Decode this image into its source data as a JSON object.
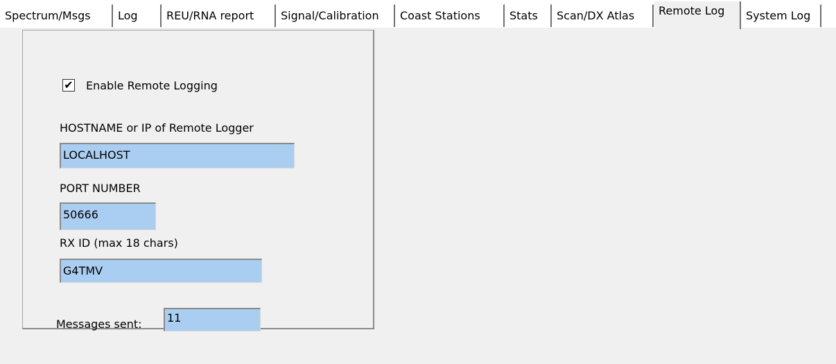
{
  "tabs": [
    {
      "label": "Spectrum/Msgs"
    },
    {
      "label": "Log"
    },
    {
      "label": "REU/RNA report"
    },
    {
      "label": "Signal/Calibration"
    },
    {
      "label": "Coast Stations"
    },
    {
      "label": "Stats"
    },
    {
      "label": "Scan/DX Atlas"
    },
    {
      "label": "Remote Log"
    },
    {
      "label": "System Log"
    }
  ],
  "remote_log": {
    "enable_label": "Enable Remote Logging",
    "enable_checked": true,
    "check_mark": "✔",
    "hostname_label": "HOSTNAME or IP of Remote Logger",
    "hostname_value": "LOCALHOST",
    "port_label": "PORT NUMBER",
    "port_value": "50666",
    "rxid_label": "RX ID (max 18 chars)",
    "rxid_value": "G4TMV",
    "messages_label": "Messages sent:",
    "messages_value": "11"
  },
  "colors": {
    "field_bg": "#aacdf2",
    "page_bg": "#f0f0f0"
  }
}
